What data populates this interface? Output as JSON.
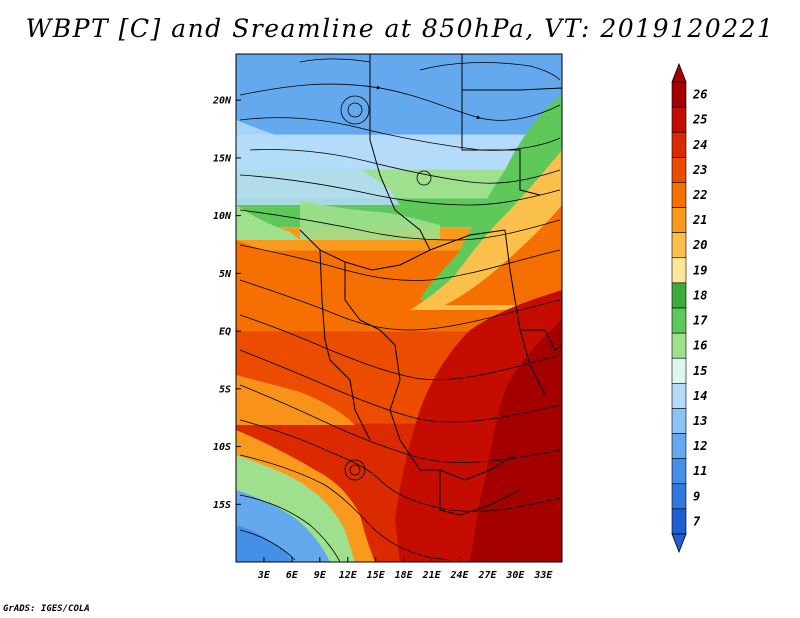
{
  "title": "WBPT [C] and Sreamline at 850hPa, VT: 2019120221",
  "credit": "GrADS: IGES/COLA",
  "map": {
    "lon_range": [
      0,
      35
    ],
    "lat_range": [
      -20,
      24
    ],
    "lat_ticks": [
      {
        "value": 20,
        "label": "20N"
      },
      {
        "value": 15,
        "label": "15N"
      },
      {
        "value": 10,
        "label": "10N"
      },
      {
        "value": 5,
        "label": "5N"
      },
      {
        "value": 0,
        "label": "EQ"
      },
      {
        "value": -5,
        "label": "5S"
      },
      {
        "value": -10,
        "label": "10S"
      },
      {
        "value": -15,
        "label": "15S"
      }
    ],
    "lon_ticks": [
      {
        "value": 3,
        "label": "3E"
      },
      {
        "value": 6,
        "label": "6E"
      },
      {
        "value": 9,
        "label": "9E"
      },
      {
        "value": 12,
        "label": "12E"
      },
      {
        "value": 15,
        "label": "15E"
      },
      {
        "value": 18,
        "label": "18E"
      },
      {
        "value": 21,
        "label": "21E"
      },
      {
        "value": 24,
        "label": "24E"
      },
      {
        "value": 27,
        "label": "27E"
      },
      {
        "value": 30,
        "label": "30E"
      },
      {
        "value": 33,
        "label": "33E"
      }
    ]
  },
  "colorbar": {
    "levels": [
      {
        "label": "26",
        "color": "#a50000"
      },
      {
        "label": "25",
        "color": "#c40d00"
      },
      {
        "label": "24",
        "color": "#dc2a00"
      },
      {
        "label": "23",
        "color": "#ec4c00"
      },
      {
        "label": "22",
        "color": "#f57000"
      },
      {
        "label": "21",
        "color": "#f99a1c"
      },
      {
        "label": "20",
        "color": "#fbc04c"
      },
      {
        "label": "19",
        "color": "#fde89a"
      },
      {
        "label": "18",
        "color": "#3caa3c"
      },
      {
        "label": "17",
        "color": "#5ec85a"
      },
      {
        "label": "16",
        "color": "#9fe08e"
      },
      {
        "label": "15",
        "color": "#dcf7ee"
      },
      {
        "label": "14",
        "color": "#b4dcfa"
      },
      {
        "label": "13",
        "color": "#8cc4f5"
      },
      {
        "label": "12",
        "color": "#64a8ee"
      },
      {
        "label": "11",
        "color": "#4390e6"
      },
      {
        "label": "9",
        "color": "#2f78dc"
      },
      {
        "label": "7",
        "color": "#1e5fd2"
      }
    ],
    "top_color": "#a50000",
    "bottom_color": "#1e5fd2"
  },
  "field_bands": [
    {
      "lat_from": 24,
      "lat_to": 17,
      "color": "#64a8ee"
    },
    {
      "lat_from": 17,
      "lat_to": 14,
      "color": "#b4dcfa"
    },
    {
      "lat_from": 14,
      "lat_to": 11.5,
      "color": "#9fe08e"
    },
    {
      "lat_from": 11.5,
      "lat_to": 9,
      "color": "#5ec85a"
    },
    {
      "lat_from": 9,
      "lat_to": 7,
      "color": "#f99a1c"
    },
    {
      "lat_from": 7,
      "lat_to": 0,
      "color": "#f57000"
    },
    {
      "lat_from": 0,
      "lat_to": -8,
      "color": "#ec4c00"
    },
    {
      "lat_from": -8,
      "lat_to": -20,
      "color": "#dc2a00"
    }
  ]
}
